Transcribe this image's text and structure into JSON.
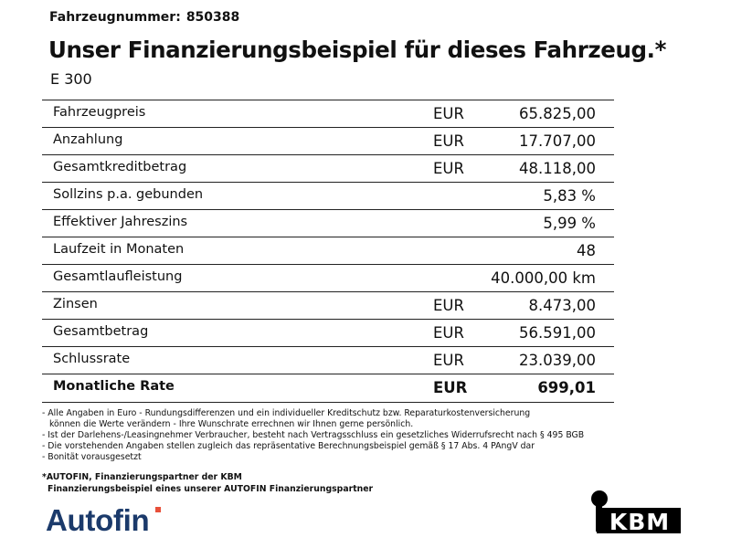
{
  "vehicle": {
    "number_label": "Fahrzeugnummer:",
    "number": "850388"
  },
  "headline": "Unser Finanzierungsbeispiel für dieses Fahrzeug.*",
  "model": "E 300",
  "rows": [
    {
      "label": "Fahrzeugpreis",
      "currency": "EUR",
      "value": "65.825,00"
    },
    {
      "label": "Anzahlung",
      "currency": "EUR",
      "value": "17.707,00"
    },
    {
      "label": "Gesamtkreditbetrag",
      "currency": "EUR",
      "value": "48.118,00"
    },
    {
      "label": "Sollzins p.a. gebunden",
      "currency": "",
      "value": "5,83 %"
    },
    {
      "label": "Effektiver Jahreszins",
      "currency": "",
      "value": "5,99 %"
    },
    {
      "label": "Laufzeit in Monaten",
      "currency": "",
      "value": "48"
    },
    {
      "label": "Gesamtlaufleistung",
      "currency": "",
      "value": "40.000,00 km"
    },
    {
      "label": "Zinsen",
      "currency": "EUR",
      "value": "8.473,00"
    },
    {
      "label": "Gesamtbetrag",
      "currency": "EUR",
      "value": "56.591,00"
    },
    {
      "label": "Schlussrate",
      "currency": "EUR",
      "value": "23.039,00"
    },
    {
      "label": "Monatliche Rate",
      "currency": "EUR",
      "value": "699,01"
    }
  ],
  "notes": [
    "- Alle Angaben in Euro - Rundungsdifferenzen und ein individueller Kreditschutz bzw. Reparaturkostenversicherung",
    "können die Werte verändern - Ihre Wunschrate errechnen wir Ihnen gerne persönlich.",
    "- Ist der Darlehens-/Leasingnehmer Verbraucher, besteht nach Vertragsschluss ein gesetzliches Widerrufsrecht nach § 495 BGB",
    "- Die vorstehenden Angaben stellen zugleich das repräsentative Berechnungsbeispiel gemäß § 17 Abs. 4 PAngV dar",
    "- Bonität vorausgesetzt"
  ],
  "partner": {
    "line1": "*AUTOFIN, Finanzierungspartner der KBM",
    "line2": "Finanzierungsbeispiel eines unserer AUTOFIN Finanzierungspartner"
  },
  "logos": {
    "autofin": "Autofin",
    "kbm": "KBM",
    "autofin_color": "#1b3a6b",
    "autofin_accent": "#e8503a"
  }
}
